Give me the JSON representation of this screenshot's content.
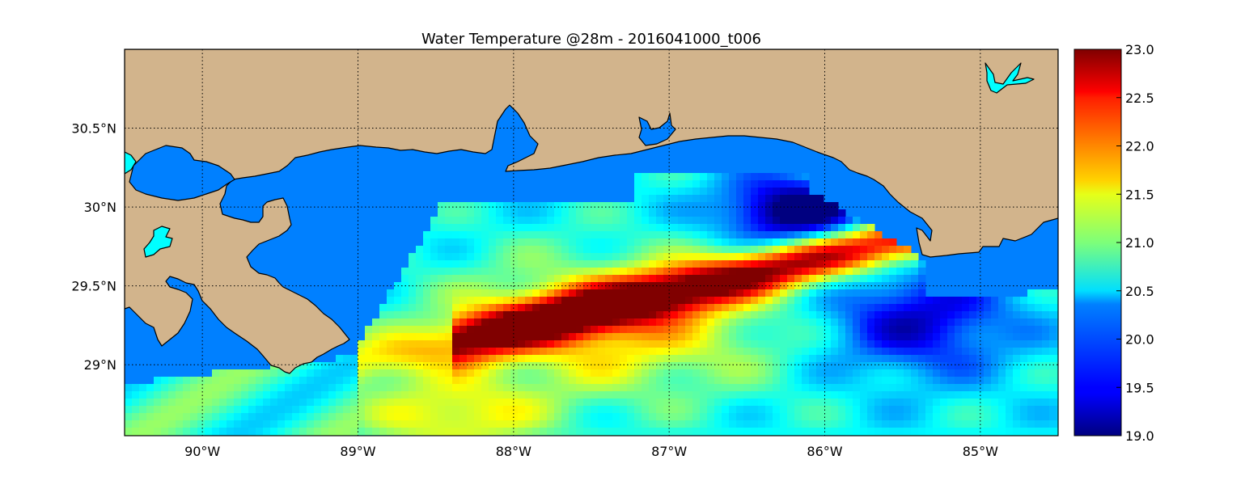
{
  "title": "Water Temperature @28m - 2016041000_t006",
  "map": {
    "lon_range": [
      -90.5,
      -84.5
    ],
    "lat_range": [
      28.55,
      31.0
    ],
    "lon_ticks": [
      {
        "value": -90,
        "label": "90°W"
      },
      {
        "value": -89,
        "label": "89°W"
      },
      {
        "value": -88,
        "label": "88°W"
      },
      {
        "value": -87,
        "label": "87°W"
      },
      {
        "value": -86,
        "label": "86°W"
      },
      {
        "value": -85,
        "label": "85°W"
      }
    ],
    "lat_ticks": [
      {
        "value": 30.5,
        "label": "30.5°N"
      },
      {
        "value": 30.0,
        "label": "30°N"
      },
      {
        "value": 29.5,
        "label": "29.5°N"
      },
      {
        "value": 29.0,
        "label": "29°N"
      }
    ],
    "grid": true,
    "colors": {
      "land": "#d2b48c",
      "masked_ocean": "#0080ff",
      "lakes": "#00ffff",
      "coastline": "#000000"
    }
  },
  "colorbar": {
    "colormap": "jet",
    "min": 19.0,
    "max": 23.0,
    "ticks": [
      "19.0",
      "19.5",
      "20.0",
      "20.5",
      "21.0",
      "21.5",
      "22.0",
      "22.5",
      "23.0"
    ]
  }
}
